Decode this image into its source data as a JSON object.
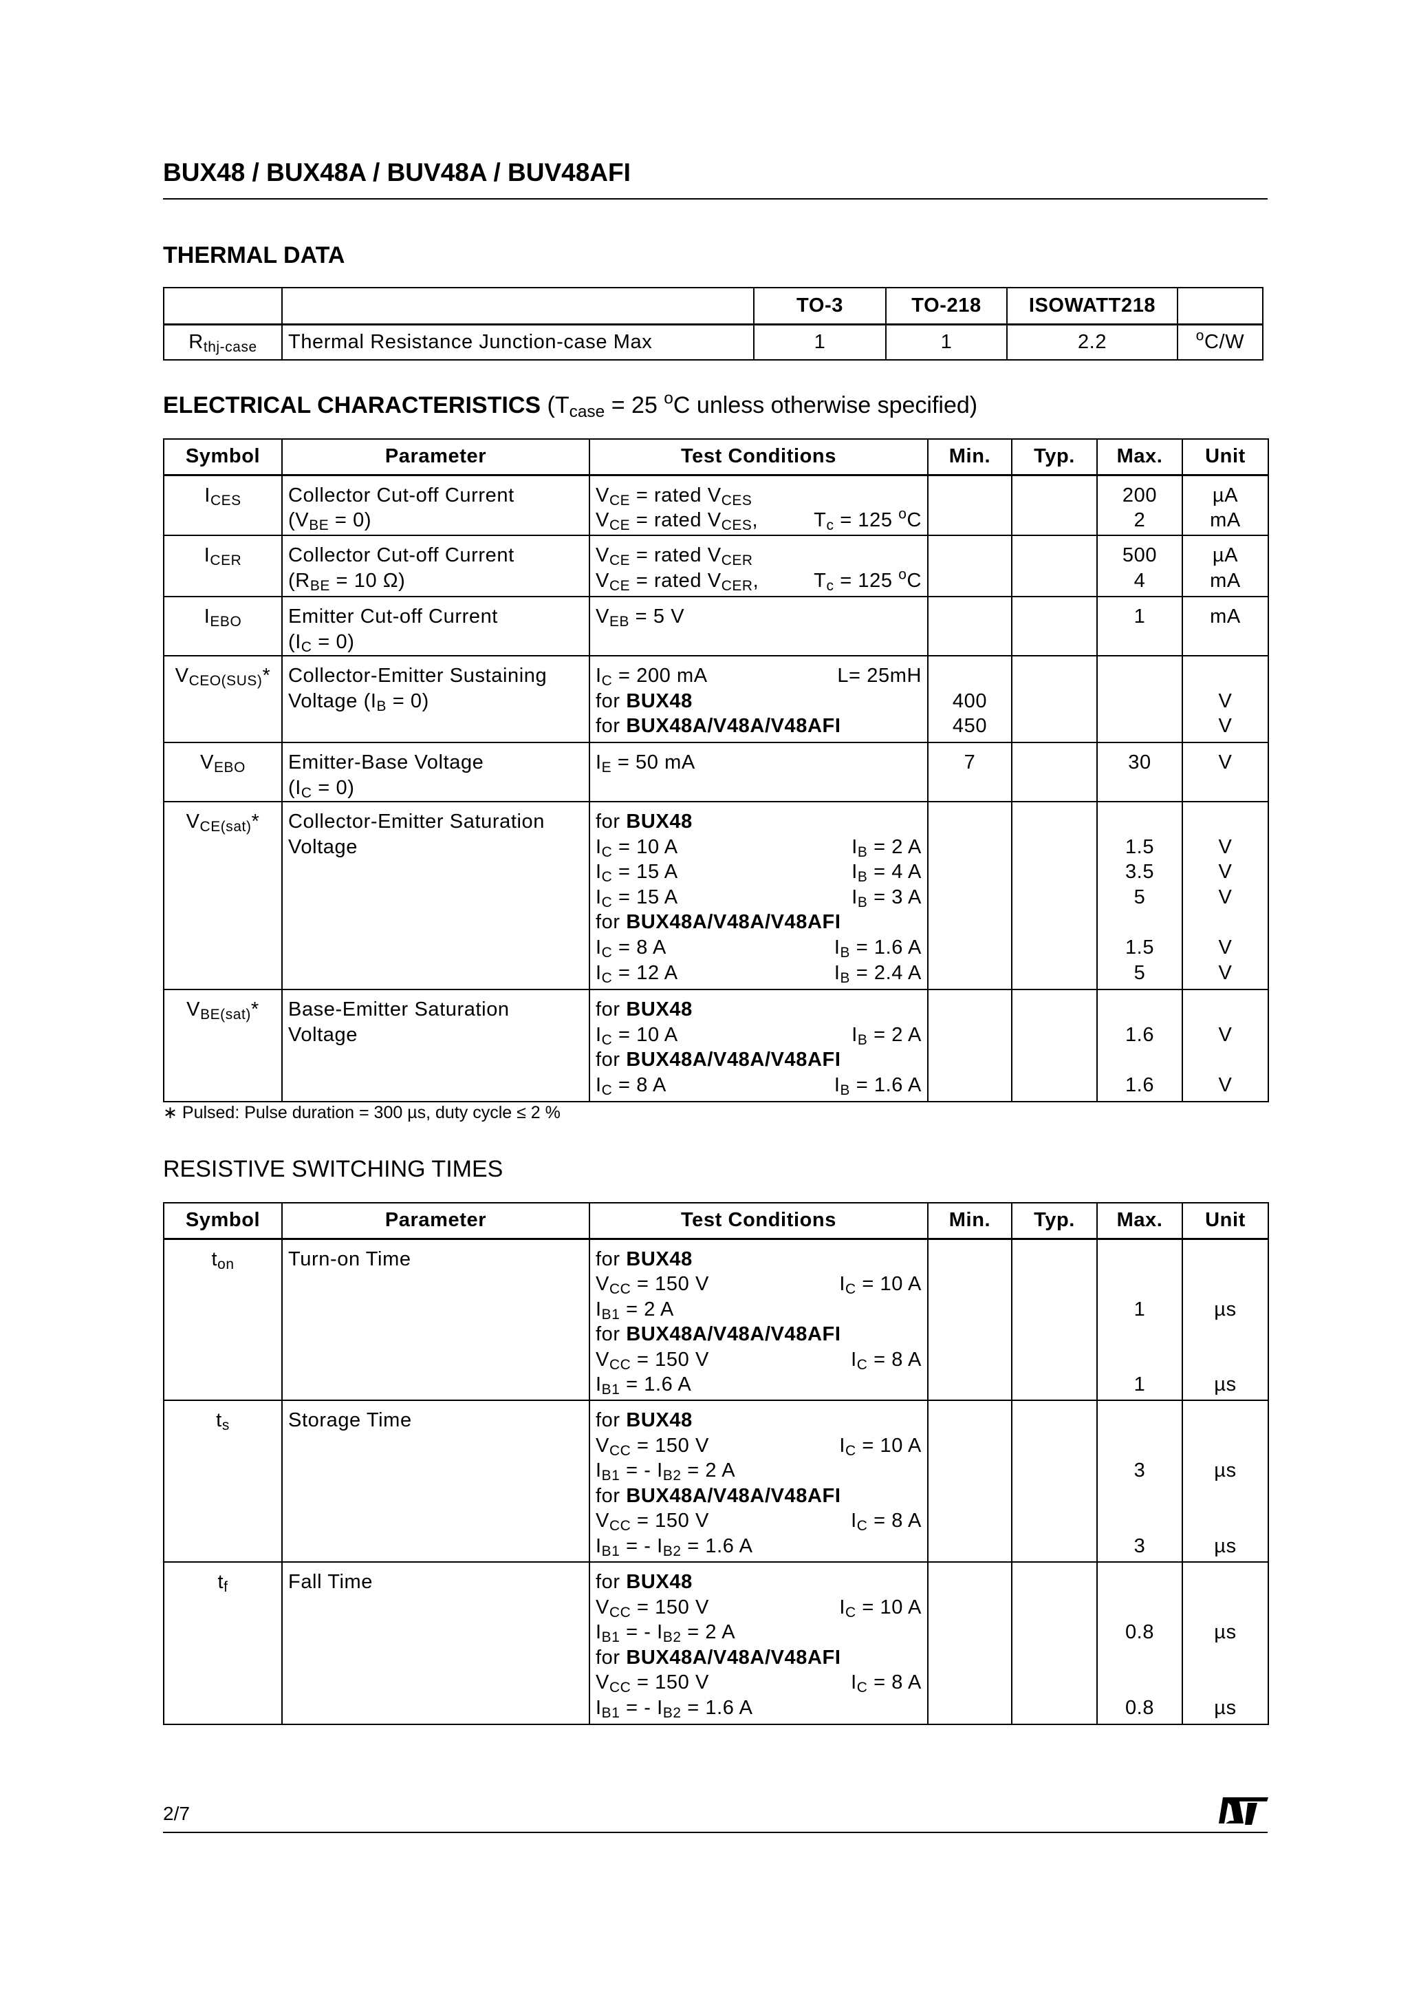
{
  "header": {
    "title": "BUX48 / BUX48A / BUV48A / BUV48AFI"
  },
  "thermal": {
    "title": "THERMAL  DATA",
    "columns": [
      "",
      "",
      "TO-3",
      "TO-218",
      "ISOWATT218",
      ""
    ],
    "row": {
      "symbol": [
        "R",
        {
          "sub": "thj-case"
        }
      ],
      "parameter": "Thermal  Resistance  Junction-case    Max",
      "values": [
        "1",
        "1",
        "2.2"
      ],
      "unit": [
        {
          "sup": "o"
        },
        "C/W"
      ]
    }
  },
  "electrical": {
    "title": [
      {
        "b": "ELECTRICAL  CHARACTERISTICS"
      },
      "  (T",
      {
        "sub": "case"
      },
      " = 25 ",
      {
        "sup": "o"
      },
      "C unless otherwise specified)"
    ],
    "columns": [
      "Symbol",
      "Parameter",
      "Test Conditions",
      "Min.",
      "Typ.",
      "Max.",
      "Unit"
    ],
    "rows": [
      {
        "symbol": [
          "I",
          {
            "sub": "CES"
          }
        ],
        "parameter": [
          [
            "Collector Cut-off Current"
          ],
          [
            "(V",
            {
              "sub": "BE"
            },
            " = 0)"
          ]
        ],
        "conditions": [
          {
            "l": [
              "V",
              {
                "sub": "CE"
              },
              " = rated V",
              {
                "sub": "CES"
              }
            ]
          },
          {
            "l": [
              "V",
              {
                "sub": "CE"
              },
              " = rated V",
              {
                "sub": "CES"
              },
              ","
            ],
            "r": [
              "T",
              {
                "sub": "c"
              },
              " = 125 ",
              {
                "sup": "o"
              },
              "C"
            ]
          }
        ],
        "min": [],
        "typ": [],
        "max": [
          "200",
          "2"
        ],
        "unit": [
          "µA",
          "mA"
        ]
      },
      {
        "symbol": [
          "I",
          {
            "sub": "CER"
          }
        ],
        "parameter": [
          [
            "Collector Cut-off Current"
          ],
          [
            "(R",
            {
              "sub": "BE"
            },
            " = 10 Ω)"
          ]
        ],
        "conditions": [
          {
            "l": [
              "V",
              {
                "sub": "CE"
              },
              " = rated V",
              {
                "sub": "CER"
              }
            ]
          },
          {
            "l": [
              "V",
              {
                "sub": "CE"
              },
              " = rated V",
              {
                "sub": "CER"
              },
              ","
            ],
            "r": [
              "T",
              {
                "sub": "c"
              },
              " = 125 ",
              {
                "sup": "o"
              },
              "C"
            ]
          }
        ],
        "min": [],
        "typ": [],
        "max": [
          "500",
          "4"
        ],
        "unit": [
          "µA",
          "mA"
        ]
      },
      {
        "symbol": [
          "I",
          {
            "sub": "EBO"
          }
        ],
        "parameter": [
          [
            "Emitter Cut-off Current"
          ],
          [
            "(I",
            {
              "sub": "C"
            },
            " = 0)"
          ]
        ],
        "conditions": [
          {
            "l": [
              "V",
              {
                "sub": "EB"
              },
              " = 5 V"
            ]
          }
        ],
        "min": [],
        "typ": [],
        "max": [
          "1"
        ],
        "unit": [
          "mA"
        ]
      },
      {
        "symbol": [
          "V",
          {
            "sub": "CEO(SUS)"
          },
          "*"
        ],
        "parameter": [
          [
            "Collector-Emitter Sustaining"
          ],
          [
            "Voltage (I",
            {
              "sub": "B"
            },
            " = 0)"
          ]
        ],
        "conditions": [
          {
            "l": [
              "I",
              {
                "sub": "C"
              },
              " = 200 mA"
            ],
            "r": [
              "L= 25mH"
            ]
          },
          {
            "l": [
              "for ",
              {
                "b": "BUX48"
              }
            ]
          },
          {
            "l": [
              "for ",
              {
                "b": "BUX48A/V48A/V48AFI"
              }
            ]
          }
        ],
        "min": [
          "",
          "400",
          "450"
        ],
        "typ": [],
        "max": [],
        "unit": [
          "",
          "V",
          "V"
        ]
      },
      {
        "symbol": [
          "V",
          {
            "sub": "EBO"
          }
        ],
        "parameter": [
          [
            "Emitter-Base Voltage"
          ],
          [
            "(I",
            {
              "sub": "C"
            },
            " = 0)"
          ]
        ],
        "conditions": [
          {
            "l": [
              "I",
              {
                "sub": "E"
              },
              " = 50 mA"
            ]
          }
        ],
        "min": [
          "7"
        ],
        "typ": [],
        "max": [
          "30"
        ],
        "unit": [
          "V"
        ]
      },
      {
        "symbol": [
          "V",
          {
            "sub": "CE(sat)"
          },
          "*"
        ],
        "parameter": [
          [
            "Collector-Emitter Saturation"
          ],
          [
            "Voltage"
          ]
        ],
        "conditions": [
          {
            "l": [
              "for ",
              {
                "b": "BUX48"
              }
            ]
          },
          {
            "l": [
              "I",
              {
                "sub": "C"
              },
              " = 10 A"
            ],
            "r": [
              "I",
              {
                "sub": "B"
              },
              " = 2 A"
            ]
          },
          {
            "l": [
              "I",
              {
                "sub": "C"
              },
              " = 15 A"
            ],
            "r": [
              "I",
              {
                "sub": "B"
              },
              " = 4 A"
            ]
          },
          {
            "l": [
              "I",
              {
                "sub": "C"
              },
              " = 15 A"
            ],
            "r": [
              "I",
              {
                "sub": "B"
              },
              " = 3 A"
            ]
          },
          {
            "l": [
              "for ",
              {
                "b": "BUX48A/V48A/V48AFI"
              }
            ]
          },
          {
            "l": [
              "I",
              {
                "sub": "C"
              },
              " = 8 A"
            ],
            "r": [
              "I",
              {
                "sub": "B"
              },
              " = 1.6 A"
            ]
          },
          {
            "l": [
              "I",
              {
                "sub": "C"
              },
              " = 12 A"
            ],
            "r": [
              "I",
              {
                "sub": "B"
              },
              " = 2.4 A"
            ]
          }
        ],
        "min": [],
        "typ": [],
        "max": [
          "",
          "1.5",
          "3.5",
          "5",
          "",
          "1.5",
          "5"
        ],
        "unit": [
          "",
          "V",
          "V",
          "V",
          "",
          "V",
          "V"
        ]
      },
      {
        "symbol": [
          "V",
          {
            "sub": "BE(sat)"
          },
          "*"
        ],
        "parameter": [
          [
            "Base-Emitter Saturation"
          ],
          [
            "Voltage"
          ]
        ],
        "conditions": [
          {
            "l": [
              "for ",
              {
                "b": "BUX48"
              }
            ]
          },
          {
            "l": [
              "I",
              {
                "sub": "C"
              },
              " = 10 A"
            ],
            "r": [
              "I",
              {
                "sub": "B"
              },
              " = 2 A"
            ]
          },
          {
            "l": [
              "for ",
              {
                "b": "BUX48A/V48A/V48AFI"
              }
            ]
          },
          {
            "l": [
              "I",
              {
                "sub": "C"
              },
              " = 8 A"
            ],
            "r": [
              "I",
              {
                "sub": "B"
              },
              " = 1.6 A"
            ]
          }
        ],
        "min": [],
        "typ": [],
        "max": [
          "",
          "1.6",
          "",
          "1.6"
        ],
        "unit": [
          "",
          "V",
          "",
          "V"
        ]
      }
    ],
    "footnote": "∗ Pulsed: Pulse duration = 300 µs, duty cycle ≤ 2 %"
  },
  "switching": {
    "title": "RESISTIVE SWITCHING TIMES",
    "columns": [
      "Symbol",
      "Parameter",
      "Test Conditions",
      "Min.",
      "Typ.",
      "Max.",
      "Unit"
    ],
    "rows": [
      {
        "symbol": [
          "t",
          {
            "sub": "on"
          }
        ],
        "parameter": [
          [
            "Turn-on Time"
          ]
        ],
        "conditions": [
          {
            "l": [
              "for ",
              {
                "b": "BUX48"
              }
            ]
          },
          {
            "l": [
              "V",
              {
                "sub": "CC"
              },
              " = 150 V"
            ],
            "r": [
              "I",
              {
                "sub": "C"
              },
              " = 10 A"
            ]
          },
          {
            "l": [
              "I",
              {
                "sub": "B1"
              },
              " = 2 A"
            ]
          },
          {
            "l": [
              "for ",
              {
                "b": "BUX48A/V48A/V48AFI"
              }
            ]
          },
          {
            "l": [
              "V",
              {
                "sub": "CC"
              },
              " = 150 V"
            ],
            "r": [
              "I",
              {
                "sub": "C"
              },
              " = 8 A"
            ]
          },
          {
            "l": [
              "I",
              {
                "sub": "B1"
              },
              " = 1.6 A"
            ]
          }
        ],
        "min": [],
        "typ": [],
        "max": [
          "",
          "",
          "1",
          "",
          "",
          "1"
        ],
        "unit": [
          "",
          "",
          "µs",
          "",
          "",
          "µs"
        ]
      },
      {
        "symbol": [
          "t",
          {
            "sub": "s"
          }
        ],
        "parameter": [
          [
            "Storage Time"
          ]
        ],
        "conditions": [
          {
            "l": [
              "for ",
              {
                "b": "BUX48"
              }
            ]
          },
          {
            "l": [
              "V",
              {
                "sub": "CC"
              },
              " = 150 V"
            ],
            "r": [
              "I",
              {
                "sub": "C"
              },
              " = 10 A"
            ]
          },
          {
            "l": [
              "I",
              {
                "sub": "B1"
              },
              " = - I",
              {
                "sub": "B2"
              },
              " = 2 A"
            ]
          },
          {
            "l": [
              "for ",
              {
                "b": "BUX48A/V48A/V48AFI"
              }
            ]
          },
          {
            "l": [
              "V",
              {
                "sub": "CC"
              },
              " = 150 V"
            ],
            "r": [
              "I",
              {
                "sub": "C"
              },
              " = 8 A"
            ]
          },
          {
            "l": [
              "I",
              {
                "sub": "B1"
              },
              " = - I",
              {
                "sub": "B2"
              },
              " = 1.6 A"
            ]
          }
        ],
        "min": [],
        "typ": [],
        "max": [
          "",
          "",
          "3",
          "",
          "",
          "3"
        ],
        "unit": [
          "",
          "",
          "µs",
          "",
          "",
          "µs"
        ]
      },
      {
        "symbol": [
          "t",
          {
            "sub": "f"
          }
        ],
        "parameter": [
          [
            "Fall Time"
          ]
        ],
        "conditions": [
          {
            "l": [
              "for ",
              {
                "b": "BUX48"
              }
            ]
          },
          {
            "l": [
              "V",
              {
                "sub": "CC"
              },
              " = 150 V"
            ],
            "r": [
              "I",
              {
                "sub": "C"
              },
              " = 10 A"
            ]
          },
          {
            "l": [
              "I",
              {
                "sub": "B1"
              },
              " = - I",
              {
                "sub": "B2"
              },
              " = 2 A"
            ]
          },
          {
            "l": [
              "for ",
              {
                "b": "BUX48A/V48A/V48AFI"
              }
            ]
          },
          {
            "l": [
              "V",
              {
                "sub": "CC"
              },
              " = 150 V"
            ],
            "r": [
              "I",
              {
                "sub": "C"
              },
              " = 8 A"
            ]
          },
          {
            "l": [
              "I",
              {
                "sub": "B1"
              },
              " = - I",
              {
                "sub": "B2"
              },
              " = 1.6 A"
            ]
          }
        ],
        "min": [],
        "typ": [],
        "max": [
          "",
          "",
          "0.8",
          "",
          "",
          "0.8"
        ],
        "unit": [
          "",
          "",
          "µs",
          "",
          "",
          "µs"
        ]
      }
    ]
  },
  "footer": {
    "page": "2/7",
    "logo": "ST",
    "logo_icon": "st-logo-icon"
  }
}
